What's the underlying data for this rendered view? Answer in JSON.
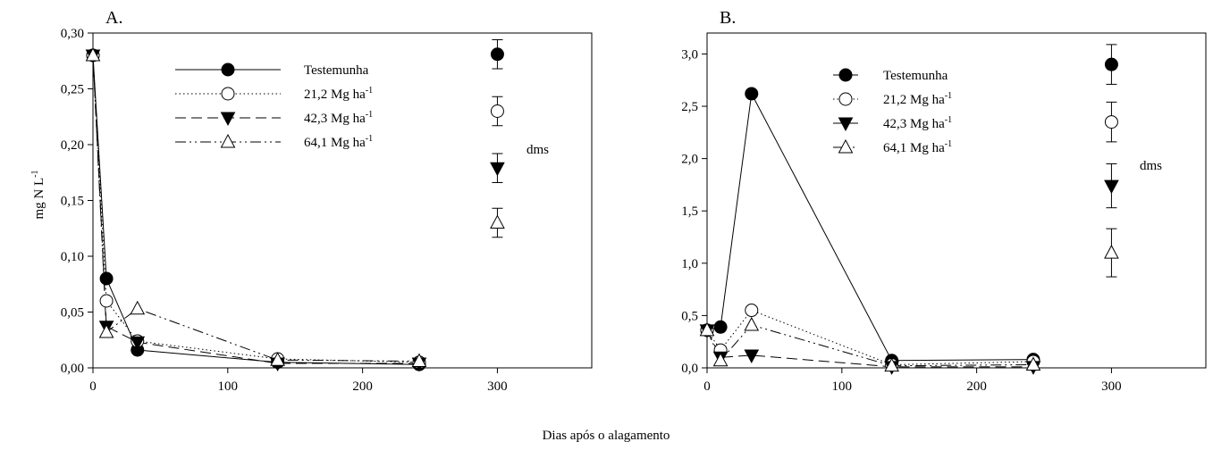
{
  "xlabel": "Dias após o alagamento",
  "ylabel": "mg N L",
  "ylabel_superscript": "-1",
  "dms_label": "dms",
  "unit_superscript": "-1",
  "chart_data": [
    {
      "type": "line",
      "panel_label": "A.",
      "xlim": [
        0,
        370
      ],
      "ylim": [
        0,
        0.3
      ],
      "x_ticks": [
        0,
        100,
        200,
        300
      ],
      "x_tick_labels": [
        "0",
        "100",
        "200",
        "300"
      ],
      "y_ticks": [
        0,
        0.05,
        0.1,
        0.15,
        0.2,
        0.25,
        0.3
      ],
      "y_tick_labels": [
        "0,00",
        "0,05",
        "0,10",
        "0,15",
        "0,20",
        "0,25",
        "0,30"
      ],
      "grid": false,
      "legend_position": "top-center",
      "series": [
        {
          "name": "Testemunha",
          "unit": "",
          "marker": "filled-circle",
          "line": "solid",
          "x": [
            0,
            10,
            33,
            137,
            242
          ],
          "y": [
            0.28,
            0.08,
            0.016,
            0.005,
            0.003
          ]
        },
        {
          "name": "21,2 Mg ha",
          "unit": "-1",
          "marker": "open-circle",
          "line": "dotted",
          "x": [
            0,
            10,
            33,
            137,
            242
          ],
          "y": [
            0.28,
            0.06,
            0.024,
            0.008,
            0.005
          ]
        },
        {
          "name": "42,3 Mg ha",
          "unit": "-1",
          "marker": "filled-triangle-down",
          "line": "dashed",
          "x": [
            0,
            10,
            33,
            137,
            242
          ],
          "y": [
            0.28,
            0.037,
            0.023,
            0.004,
            0.004
          ]
        },
        {
          "name": "64,1 Mg ha",
          "unit": "-1",
          "marker": "open-triangle-up",
          "line": "dashdotdot",
          "x": [
            0,
            10,
            33,
            137,
            242
          ],
          "y": [
            0.28,
            0.032,
            0.053,
            0.007,
            0.006
          ]
        }
      ],
      "dms_points": [
        {
          "marker": "filled-circle",
          "x": 300,
          "y": 0.281,
          "err": 0.013
        },
        {
          "marker": "open-circle",
          "x": 300,
          "y": 0.23,
          "err": 0.013
        },
        {
          "marker": "filled-triangle-down",
          "x": 300,
          "y": 0.179,
          "err": 0.013
        },
        {
          "marker": "open-triangle-up",
          "x": 300,
          "y": 0.13,
          "err": 0.013
        }
      ]
    },
    {
      "type": "line",
      "panel_label": "B.",
      "xlim": [
        0,
        370
      ],
      "ylim": [
        0,
        3.2
      ],
      "x_ticks": [
        0,
        100,
        200,
        300
      ],
      "x_tick_labels": [
        "0",
        "100",
        "200",
        "300"
      ],
      "y_ticks": [
        0,
        0.5,
        1.0,
        1.5,
        2.0,
        2.5,
        3.0
      ],
      "y_tick_labels": [
        "0,0",
        "0,5",
        "1,0",
        "1,5",
        "2,0",
        "2,5",
        "3,0"
      ],
      "grid": false,
      "legend_position": "top-left",
      "series": [
        {
          "name": "Testemunha",
          "unit": "",
          "marker": "filled-circle",
          "line": "solid",
          "x": [
            0,
            10,
            33,
            137,
            242
          ],
          "y": [
            0.36,
            0.39,
            2.62,
            0.07,
            0.08
          ]
        },
        {
          "name": "21,2 Mg ha",
          "unit": "-1",
          "marker": "open-circle",
          "line": "dotted",
          "x": [
            0,
            10,
            33,
            137,
            242
          ],
          "y": [
            0.36,
            0.17,
            0.55,
            0.03,
            0.06
          ]
        },
        {
          "name": "42,3 Mg ha",
          "unit": "-1",
          "marker": "filled-triangle-down",
          "line": "dashed",
          "x": [
            0,
            10,
            33,
            137,
            242
          ],
          "y": [
            0.36,
            0.1,
            0.12,
            0.01,
            0.01
          ]
        },
        {
          "name": "64,1 Mg ha",
          "unit": "-1",
          "marker": "open-triangle-up",
          "line": "dashdotdot",
          "x": [
            0,
            10,
            33,
            137,
            242
          ],
          "y": [
            0.36,
            0.07,
            0.41,
            0.02,
            0.03
          ]
        }
      ],
      "dms_points": [
        {
          "marker": "filled-circle",
          "x": 300,
          "y": 2.9,
          "err": 0.19
        },
        {
          "marker": "open-circle",
          "x": 300,
          "y": 2.35,
          "err": 0.19
        },
        {
          "marker": "filled-triangle-down",
          "x": 300,
          "y": 1.74,
          "err": 0.21
        },
        {
          "marker": "open-triangle-up",
          "x": 300,
          "y": 1.1,
          "err": 0.23
        }
      ]
    }
  ]
}
